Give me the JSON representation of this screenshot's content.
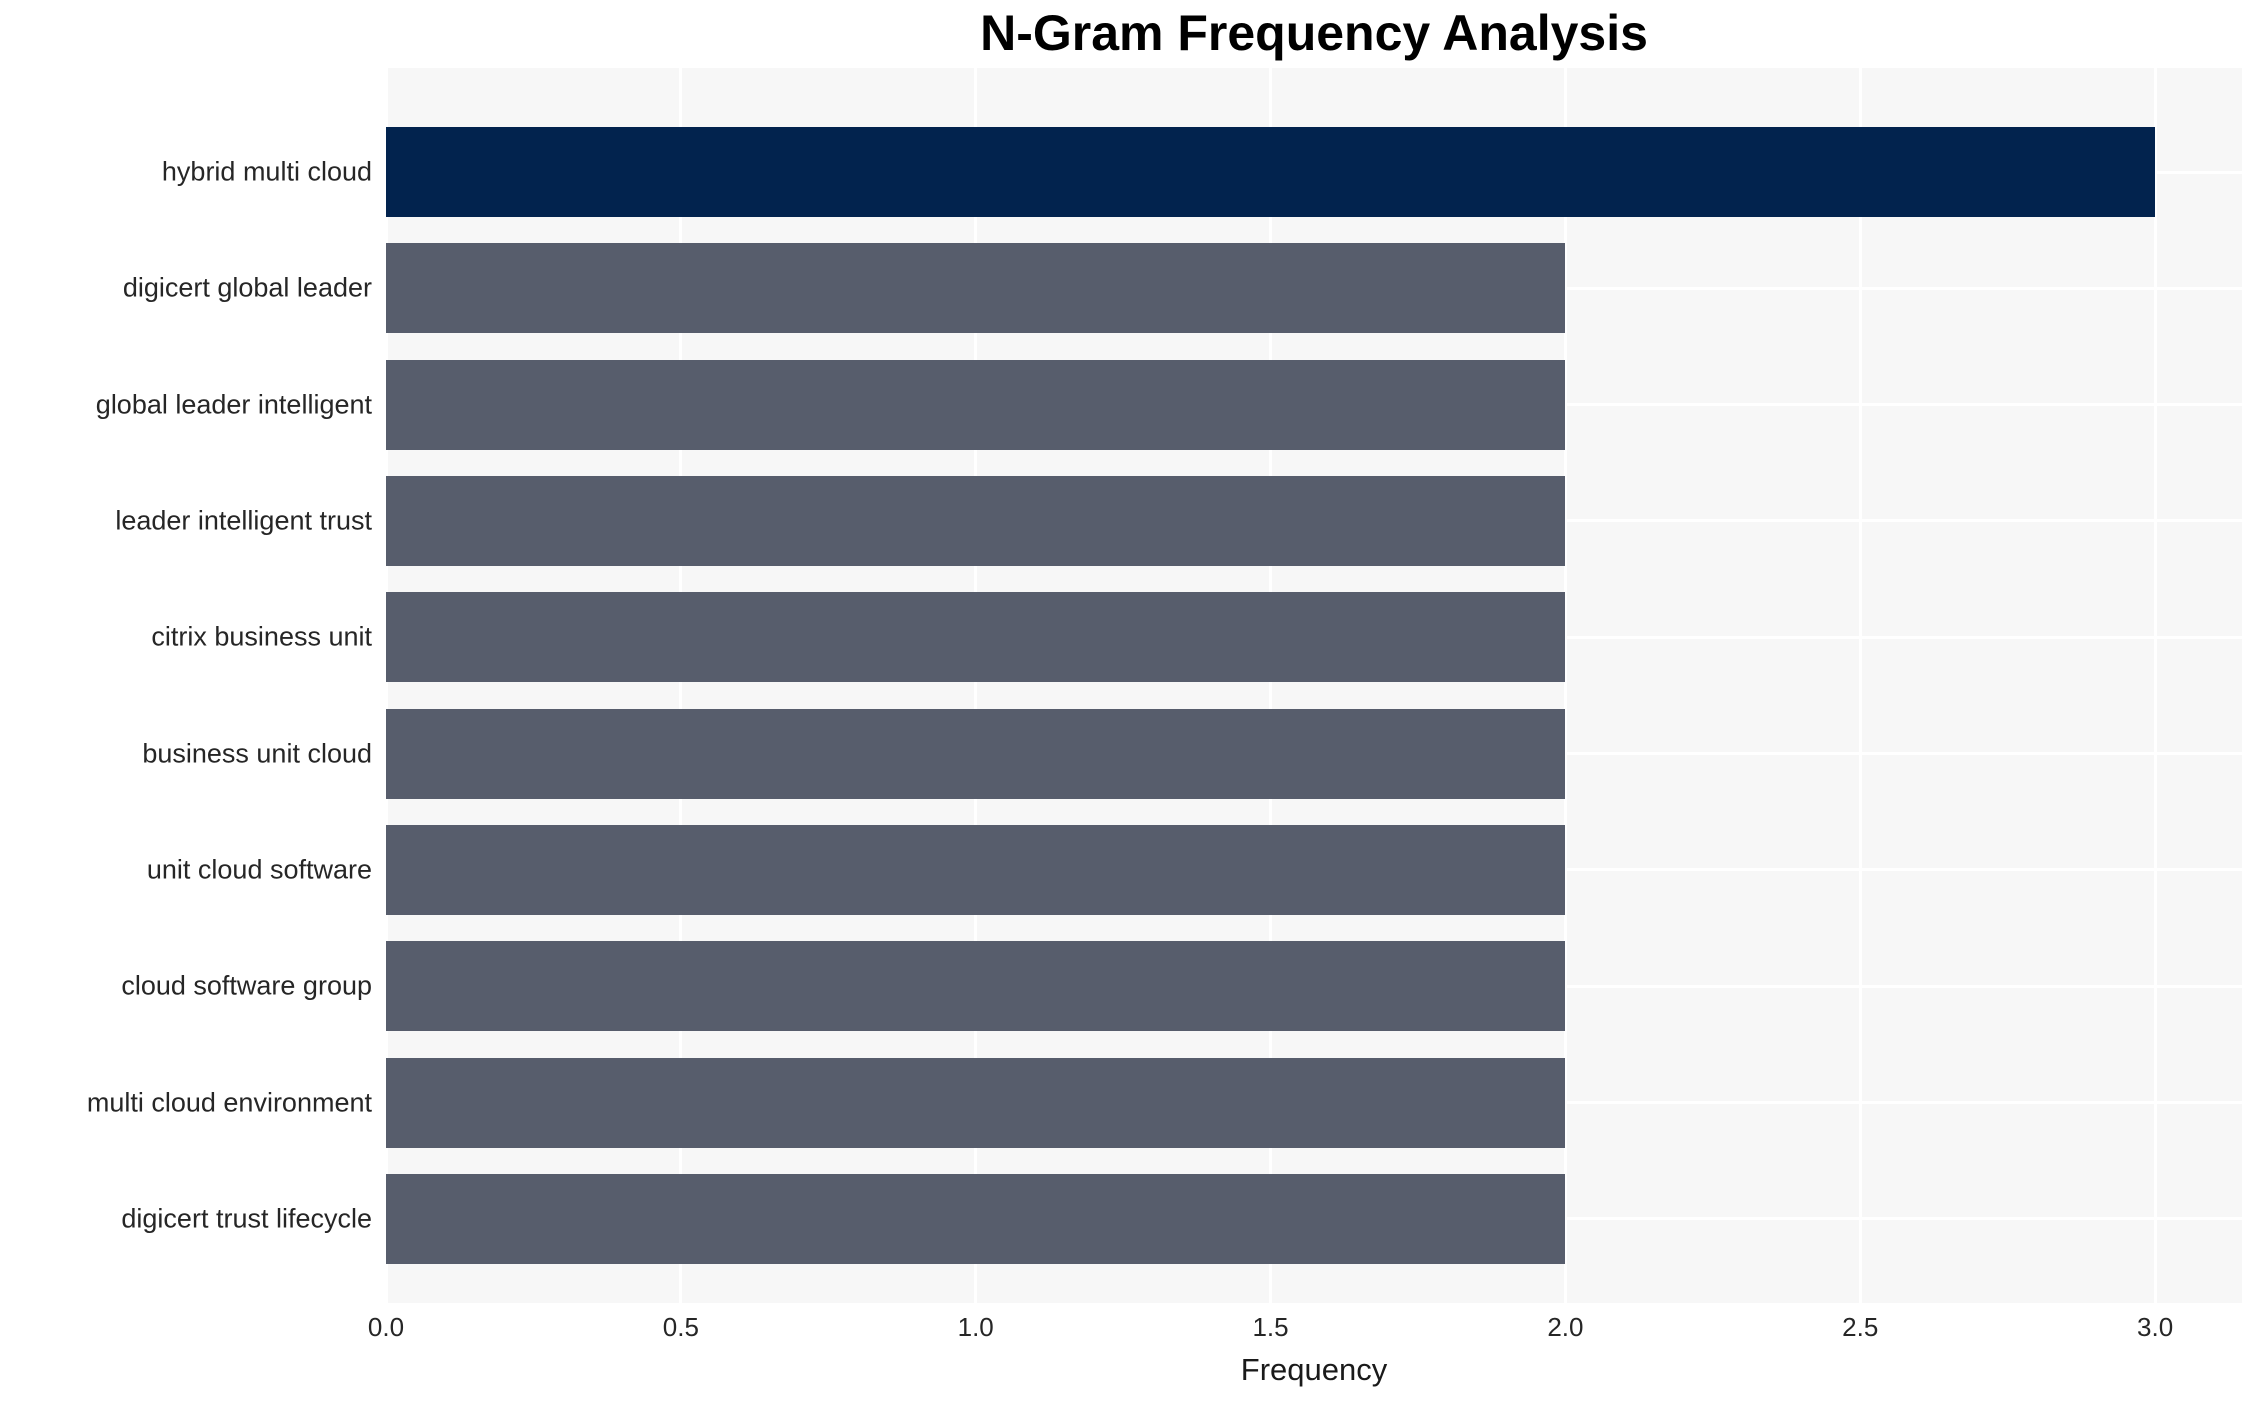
{
  "chart_data": {
    "type": "bar",
    "orientation": "horizontal",
    "title": "N-Gram Frequency Analysis",
    "xlabel": "Frequency",
    "ylabel": "",
    "categories": [
      "hybrid multi cloud",
      "digicert global leader",
      "global leader intelligent",
      "leader intelligent trust",
      "citrix business unit",
      "business unit cloud",
      "unit cloud software",
      "cloud software group",
      "multi cloud environment",
      "digicert trust lifecycle"
    ],
    "values": [
      3,
      2,
      2,
      2,
      2,
      2,
      2,
      2,
      2,
      2
    ],
    "xticks": [
      0.0,
      0.5,
      1.0,
      1.5,
      2.0,
      2.5,
      3.0
    ],
    "xtick_labels": [
      "0.0",
      "0.5",
      "1.0",
      "1.5",
      "2.0",
      "2.5",
      "3.0"
    ],
    "xlim": [
      0,
      3.147
    ],
    "grid": "on",
    "legend": "none",
    "colors": {
      "highlight_bar": "#02234e",
      "default_bar": "#575d6c",
      "plot_background": "#f7f7f7",
      "figure_background": "#ffffff",
      "gridline": "#ffffff",
      "text": "#262626"
    },
    "bar_colors": [
      "#02234e",
      "#575d6c",
      "#575d6c",
      "#575d6c",
      "#575d6c",
      "#575d6c",
      "#575d6c",
      "#575d6c",
      "#575d6c",
      "#575d6c"
    ]
  }
}
